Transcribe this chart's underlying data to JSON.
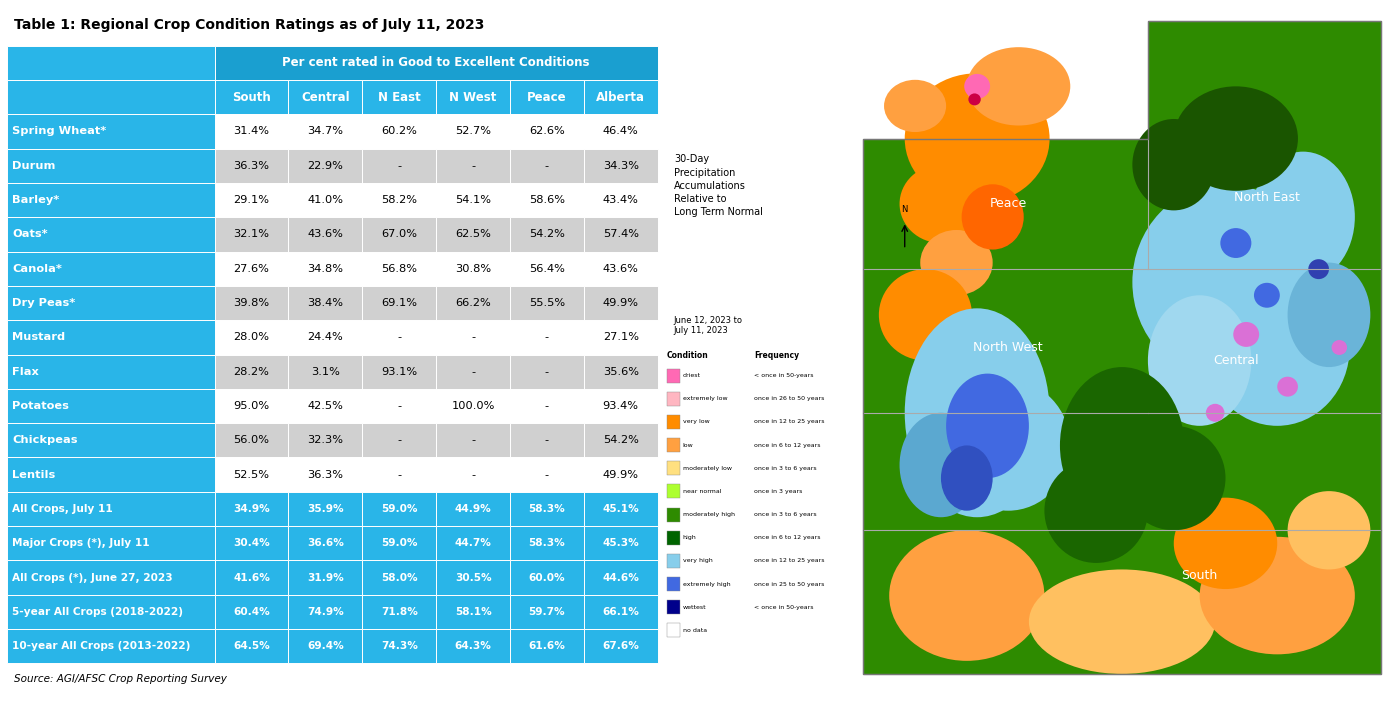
{
  "title": "Table 1: Regional Crop Condition Ratings as of July 11, 2023",
  "subtitle": "Per cent rated in Good to Excellent Conditions",
  "source": "Source: AGI/AFSC Crop Reporting Survey",
  "columns": [
    "",
    "South",
    "Central",
    "N East",
    "N West",
    "Peace",
    "Alberta"
  ],
  "rows": [
    {
      "label": "Spring Wheat*",
      "values": [
        "31.4%",
        "34.7%",
        "60.2%",
        "52.7%",
        "62.6%",
        "46.4%"
      ],
      "shaded": false
    },
    {
      "label": "Durum",
      "values": [
        "36.3%",
        "22.9%",
        "-",
        "-",
        "-",
        "34.3%"
      ],
      "shaded": true
    },
    {
      "label": "Barley*",
      "values": [
        "29.1%",
        "41.0%",
        "58.2%",
        "54.1%",
        "58.6%",
        "43.4%"
      ],
      "shaded": false
    },
    {
      "label": "Oats*",
      "values": [
        "32.1%",
        "43.6%",
        "67.0%",
        "62.5%",
        "54.2%",
        "57.4%"
      ],
      "shaded": true
    },
    {
      "label": "Canola*",
      "values": [
        "27.6%",
        "34.8%",
        "56.8%",
        "30.8%",
        "56.4%",
        "43.6%"
      ],
      "shaded": false
    },
    {
      "label": "Dry Peas*",
      "values": [
        "39.8%",
        "38.4%",
        "69.1%",
        "66.2%",
        "55.5%",
        "49.9%"
      ],
      "shaded": true
    },
    {
      "label": "Mustard",
      "values": [
        "28.0%",
        "24.4%",
        "-",
        "-",
        "-",
        "27.1%"
      ],
      "shaded": false
    },
    {
      "label": "Flax",
      "values": [
        "28.2%",
        "3.1%",
        "93.1%",
        "-",
        "-",
        "35.6%"
      ],
      "shaded": true
    },
    {
      "label": "Potatoes",
      "values": [
        "95.0%",
        "42.5%",
        "-",
        "100.0%",
        "-",
        "93.4%"
      ],
      "shaded": false
    },
    {
      "label": "Chickpeas",
      "values": [
        "56.0%",
        "32.3%",
        "-",
        "-",
        "-",
        "54.2%"
      ],
      "shaded": true
    },
    {
      "label": "Lentils",
      "values": [
        "52.5%",
        "36.3%",
        "-",
        "-",
        "-",
        "49.9%"
      ],
      "shaded": false
    }
  ],
  "summary_rows": [
    {
      "label": "All Crops, July 11",
      "values": [
        "34.9%",
        "35.9%",
        "59.0%",
        "44.9%",
        "58.3%",
        "45.1%"
      ]
    },
    {
      "label": "Major Crops (*), July 11",
      "values": [
        "30.4%",
        "36.6%",
        "59.0%",
        "44.7%",
        "58.3%",
        "45.3%"
      ]
    },
    {
      "label": "All Crops (*), June 27, 2023",
      "values": [
        "41.6%",
        "31.9%",
        "58.0%",
        "30.5%",
        "60.0%",
        "44.6%"
      ]
    },
    {
      "label": "5-year All Crops (2018-2022)",
      "values": [
        "60.4%",
        "74.9%",
        "71.8%",
        "58.1%",
        "59.7%",
        "66.1%"
      ]
    },
    {
      "label": "10-year All Crops (2013-2022)",
      "values": [
        "64.5%",
        "69.4%",
        "74.3%",
        "64.3%",
        "61.6%",
        "67.6%"
      ]
    }
  ],
  "header_bg": "#29b5e8",
  "label_bg": "#29b5e8",
  "label_text_color": "#ffffff",
  "header_text_color": "#ffffff",
  "summary_bg": "#29b5e8",
  "summary_text_color": "#ffffff",
  "shaded_row_bg": "#d0d0d0",
  "normal_row_bg": "#ffffff",
  "title_color": "#000000",
  "source_color": "#000000",
  "map_legend_conditions": [
    "driest",
    "extremely low",
    "very low",
    "low",
    "moderately low",
    "near normal",
    "moderately high",
    "high",
    "very high",
    "extremely high",
    "wettest",
    "no data"
  ],
  "map_legend_frequencies": [
    "< once in 50-years",
    "once in 26 to 50 years",
    "once in 12 to 25 years",
    "once in 6 to 12 years",
    "once in 3 to 6 years",
    "once in 3 years",
    "once in 3 to 6 years",
    "once in 6 to 12 years",
    "once in 12 to 25 years",
    "once in 25 to 50 years",
    "< once in 50-years",
    ""
  ],
  "map_legend_colors": [
    "#ff69b4",
    "#ffb6c1",
    "#ff8c00",
    "#ffa040",
    "#ffe080",
    "#adff2f",
    "#2e8b00",
    "#006400",
    "#87ceeb",
    "#4169e1",
    "#00008b",
    "#ffffff"
  ],
  "map_title": "30-Day\nPrecipitation\nAccumulations\nRelative to\nLong Term Normal",
  "map_date": "June 12, 2023 to\nJuly 11, 2023"
}
